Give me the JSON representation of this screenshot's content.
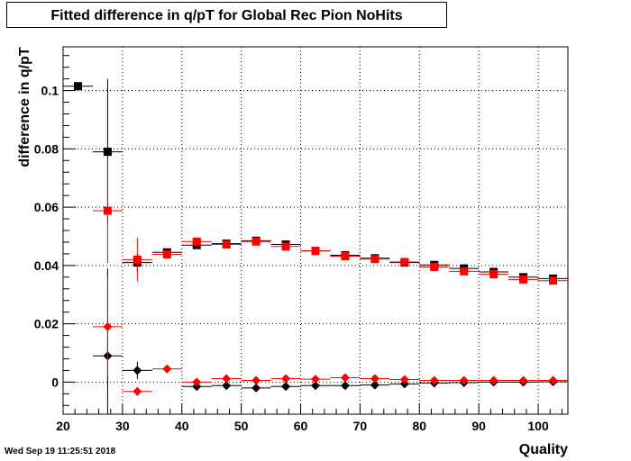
{
  "chart_data": {
    "type": "scatter",
    "title": "Fitted difference in q/pT for Global Rec Pion NoHits",
    "xlabel": "Quality",
    "ylabel": "difference in q/pT",
    "xlim": [
      20,
      105
    ],
    "ylim": [
      -0.011,
      0.115
    ],
    "xticks": [
      20,
      30,
      40,
      50,
      60,
      70,
      80,
      90,
      100
    ],
    "yticks": [
      0,
      0.02,
      0.04,
      0.06,
      0.08,
      0.1
    ],
    "ytick_labels": [
      "0",
      "0.02",
      "0.04",
      "0.06",
      "0.08",
      "0.1"
    ],
    "grid": true,
    "bin_half_width": 2.5,
    "series": [
      {
        "marker": "square",
        "color": "#000000",
        "points": [
          {
            "x": 22.5,
            "y": 0.1015,
            "err": 0
          },
          {
            "x": 27.5,
            "y": 0.079,
            "err": 0.025
          },
          {
            "x": 32.5,
            "y": 0.041,
            "err": 0.003
          },
          {
            "x": 37.5,
            "y": 0.0445,
            "err": 0.001
          },
          {
            "x": 42.5,
            "y": 0.047,
            "err": 0.0008
          },
          {
            "x": 47.5,
            "y": 0.0475,
            "err": 0.0006
          },
          {
            "x": 52.5,
            "y": 0.0485,
            "err": 0.0005
          },
          {
            "x": 57.5,
            "y": 0.0472,
            "err": 0.0005
          },
          {
            "x": 62.5,
            "y": 0.045,
            "err": 0.0004
          },
          {
            "x": 67.5,
            "y": 0.0435,
            "err": 0.0004
          },
          {
            "x": 72.5,
            "y": 0.0425,
            "err": 0.0004
          },
          {
            "x": 77.5,
            "y": 0.041,
            "err": 0.0004
          },
          {
            "x": 82.5,
            "y": 0.0402,
            "err": 0.0004
          },
          {
            "x": 87.5,
            "y": 0.039,
            "err": 0.0004
          },
          {
            "x": 92.5,
            "y": 0.0378,
            "err": 0.0004
          },
          {
            "x": 97.5,
            "y": 0.036,
            "err": 0.0004
          },
          {
            "x": 102.5,
            "y": 0.0355,
            "err": 0.0004
          }
        ]
      },
      {
        "marker": "square",
        "color": "#ff0000",
        "points": [
          {
            "x": 27.5,
            "y": 0.0588,
            "err": 0.018
          },
          {
            "x": 32.5,
            "y": 0.042,
            "err": 0.0075
          },
          {
            "x": 37.5,
            "y": 0.0438,
            "err": 0.0015
          },
          {
            "x": 42.5,
            "y": 0.0482,
            "err": 0.001
          },
          {
            "x": 47.5,
            "y": 0.0472,
            "err": 0.0006
          },
          {
            "x": 52.5,
            "y": 0.0482,
            "err": 0.0005
          },
          {
            "x": 57.5,
            "y": 0.0465,
            "err": 0.0005
          },
          {
            "x": 62.5,
            "y": 0.045,
            "err": 0.0004
          },
          {
            "x": 67.5,
            "y": 0.0432,
            "err": 0.0004
          },
          {
            "x": 72.5,
            "y": 0.0422,
            "err": 0.0004
          },
          {
            "x": 77.5,
            "y": 0.0412,
            "err": 0.0004
          },
          {
            "x": 82.5,
            "y": 0.0395,
            "err": 0.0004
          },
          {
            "x": 87.5,
            "y": 0.038,
            "err": 0.0004
          },
          {
            "x": 92.5,
            "y": 0.037,
            "err": 0.0004
          },
          {
            "x": 97.5,
            "y": 0.0352,
            "err": 0.0004
          },
          {
            "x": 102.5,
            "y": 0.0348,
            "err": 0.0004
          }
        ]
      },
      {
        "marker": "diamond",
        "color": "#000000",
        "points": [
          {
            "x": 27.5,
            "y": 0.009,
            "err": 0.03
          },
          {
            "x": 32.5,
            "y": 0.004,
            "err": 0.003
          },
          {
            "x": 42.5,
            "y": -0.0015,
            "err": 0.0005
          },
          {
            "x": 47.5,
            "y": -0.0012,
            "err": 0.0004
          },
          {
            "x": 52.5,
            "y": -0.002,
            "err": 0.0004
          },
          {
            "x": 57.5,
            "y": -0.0015,
            "err": 0.0003
          },
          {
            "x": 62.5,
            "y": -0.0012,
            "err": 0.0003
          },
          {
            "x": 67.5,
            "y": -0.0012,
            "err": 0.0003
          },
          {
            "x": 72.5,
            "y": -0.001,
            "err": 0.0003
          },
          {
            "x": 77.5,
            "y": -0.0006,
            "err": 0.0003
          },
          {
            "x": 82.5,
            "y": -0.0003,
            "err": 0.0003
          },
          {
            "x": 87.5,
            "y": -0.0002,
            "err": 0.0003
          },
          {
            "x": 92.5,
            "y": 0.0,
            "err": 0.0003
          },
          {
            "x": 97.5,
            "y": 0.0,
            "err": 0.0003
          },
          {
            "x": 102.5,
            "y": 0.0001,
            "err": 0.0003
          }
        ]
      },
      {
        "marker": "diamond",
        "color": "#ff0000",
        "points": [
          {
            "x": 27.5,
            "y": 0.019,
            "err": 0.017
          },
          {
            "x": 32.5,
            "y": -0.0032,
            "err": 0.0015
          },
          {
            "x": 37.5,
            "y": 0.0045,
            "err": 0.0015
          },
          {
            "x": 42.5,
            "y": 0.0,
            "err": 0.0006
          },
          {
            "x": 47.5,
            "y": 0.0012,
            "err": 0.0005
          },
          {
            "x": 52.5,
            "y": 0.0006,
            "err": 0.0004
          },
          {
            "x": 57.5,
            "y": 0.0012,
            "err": 0.0004
          },
          {
            "x": 62.5,
            "y": 0.001,
            "err": 0.0004
          },
          {
            "x": 67.5,
            "y": 0.0015,
            "err": 0.0004
          },
          {
            "x": 72.5,
            "y": 0.0012,
            "err": 0.0004
          },
          {
            "x": 77.5,
            "y": 0.0009,
            "err": 0.0004
          },
          {
            "x": 82.5,
            "y": 0.0006,
            "err": 0.0003
          },
          {
            "x": 87.5,
            "y": 0.0006,
            "err": 0.0003
          },
          {
            "x": 92.5,
            "y": 0.0006,
            "err": 0.0003
          },
          {
            "x": 97.5,
            "y": 0.0006,
            "err": 0.0003
          },
          {
            "x": 102.5,
            "y": 0.0006,
            "err": 0.0003
          }
        ]
      }
    ]
  },
  "timestamp": "Wed Sep 19 11:25:51 2018"
}
